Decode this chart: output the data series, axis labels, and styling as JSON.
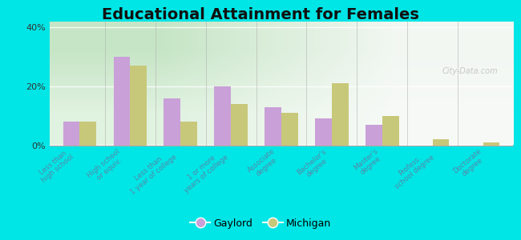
{
  "title": "Educational Attainment for Females",
  "categories": [
    "Less than\nhigh school",
    "High school\nor equiv.",
    "Less than\n1 year of college",
    "1 or more\nyears of college",
    "Associate\ndegree",
    "Bachelor's\ndegree",
    "Master's\ndegree",
    "Profess.\nschool degree",
    "Doctorate\ndegree"
  ],
  "gaylord": [
    8.0,
    30.0,
    16.0,
    20.0,
    13.0,
    9.0,
    7.0,
    0.0,
    0.0
  ],
  "michigan": [
    8.0,
    27.0,
    8.0,
    14.0,
    11.0,
    21.0,
    10.0,
    2.0,
    1.0
  ],
  "gaylord_color": "#c9a0d8",
  "michigan_color": "#c8c87a",
  "outer_background": "#00e5e5",
  "ylim": [
    0,
    42
  ],
  "yticks": [
    0,
    20,
    40
  ],
  "ytick_labels": [
    "0%",
    "20%",
    "40%"
  ],
  "title_fontsize": 14,
  "legend_labels": [
    "Gaylord",
    "Michigan"
  ],
  "watermark": "City-Data.com",
  "label_color": "#5588aa",
  "label_fontsize": 6.2
}
